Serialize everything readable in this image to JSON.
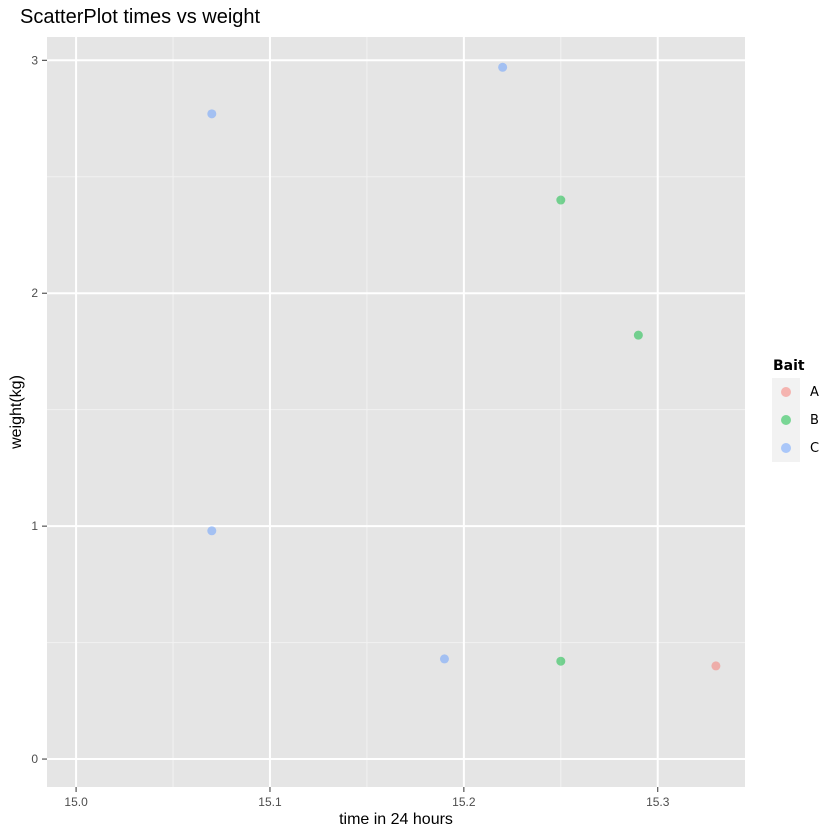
{
  "chart_data": {
    "type": "scatter",
    "title": "ScatterPlot times vs weight",
    "xlabel": "time in 24 hours",
    "ylabel": "weight(kg)",
    "xlim": [
      14.985,
      15.345
    ],
    "ylim": [
      -0.12,
      3.1
    ],
    "x_ticks": [
      15.0,
      15.1,
      15.2,
      15.3
    ],
    "x_tick_labels": [
      "15.0",
      "15.1",
      "15.2",
      "15.3"
    ],
    "y_ticks": [
      0,
      1,
      2,
      3
    ],
    "y_tick_labels": [
      "0",
      "1",
      "2",
      "3"
    ],
    "grid": true,
    "panel_background": "#e5e5e5",
    "legend": {
      "title": "Bait",
      "position": "right",
      "entries": [
        {
          "label": "A",
          "color": "#f8766d"
        },
        {
          "label": "B",
          "color": "#00ba38"
        },
        {
          "label": "C",
          "color": "#619cff"
        }
      ]
    },
    "points": [
      {
        "x": 15.07,
        "y": 2.77,
        "group": "C"
      },
      {
        "x": 15.22,
        "y": 2.97,
        "group": "C"
      },
      {
        "x": 15.25,
        "y": 2.4,
        "group": "B"
      },
      {
        "x": 15.29,
        "y": 1.82,
        "group": "B"
      },
      {
        "x": 15.07,
        "y": 0.98,
        "group": "C"
      },
      {
        "x": 15.19,
        "y": 0.43,
        "group": "C"
      },
      {
        "x": 15.25,
        "y": 0.42,
        "group": "B"
      },
      {
        "x": 15.33,
        "y": 0.4,
        "group": "A"
      }
    ]
  }
}
